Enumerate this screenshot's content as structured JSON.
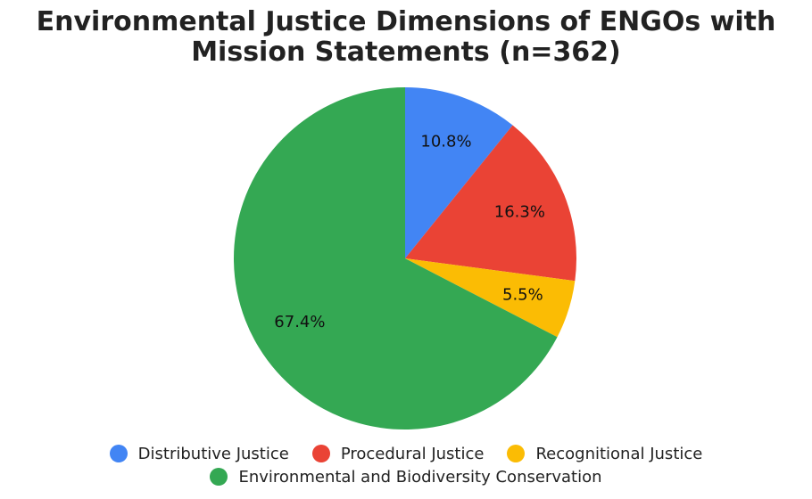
{
  "chart_data": {
    "type": "pie",
    "title": "Environmental Justice Dimensions of ENGOs with Mission Statements (n=362)",
    "categories": [
      "Distributive Justice",
      "Procedural Justice",
      "Recognitional Justice",
      "Environmental and Biodiversity Conservation"
    ],
    "values": [
      10.8,
      16.3,
      5.5,
      67.4
    ],
    "value_labels": [
      "10.8%",
      "16.3%",
      "5.5%",
      "67.4%"
    ],
    "colors": [
      "#4285f4",
      "#ea4335",
      "#fbbc04",
      "#34a853"
    ]
  }
}
